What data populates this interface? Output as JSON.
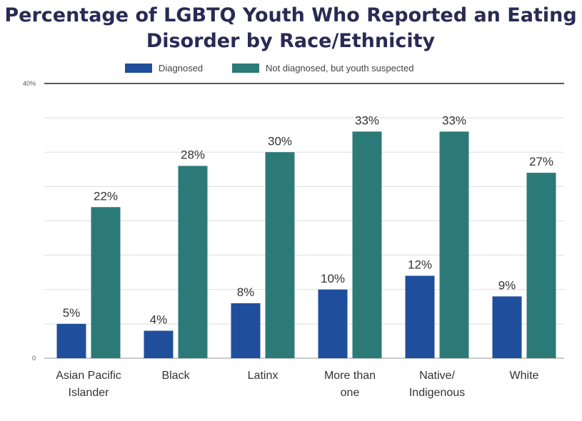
{
  "chart_data": {
    "type": "bar",
    "title_lines": [
      "Percentage of LGBTQ Youth Who Reported an Eating",
      "Disorder by Race/Ethnicity"
    ],
    "categories": [
      [
        "Asian Pacific",
        "Islander"
      ],
      [
        "Black"
      ],
      [
        "Latinx"
      ],
      [
        "More than",
        "one"
      ],
      [
        "Native/",
        "Indigenous"
      ],
      [
        "White"
      ]
    ],
    "series": [
      {
        "name": "Diagnosed",
        "color": "#1f4e9c",
        "values": [
          5,
          4,
          8,
          10,
          12,
          9
        ],
        "labels": [
          "5%",
          "4%",
          "8%",
          "10%",
          "12%",
          "9%"
        ]
      },
      {
        "name": "Not diagnosed, but youth suspected",
        "color": "#2b7a78",
        "values": [
          22,
          28,
          30,
          33,
          33,
          27
        ],
        "labels": [
          "22%",
          "28%",
          "30%",
          "33%",
          "33%",
          "27%"
        ]
      }
    ],
    "ylim": [
      0,
      40
    ],
    "yticks": [
      0,
      40
    ],
    "ytick_labels": [
      "0",
      "40%"
    ],
    "grid": true,
    "legend_position": "top-center"
  }
}
